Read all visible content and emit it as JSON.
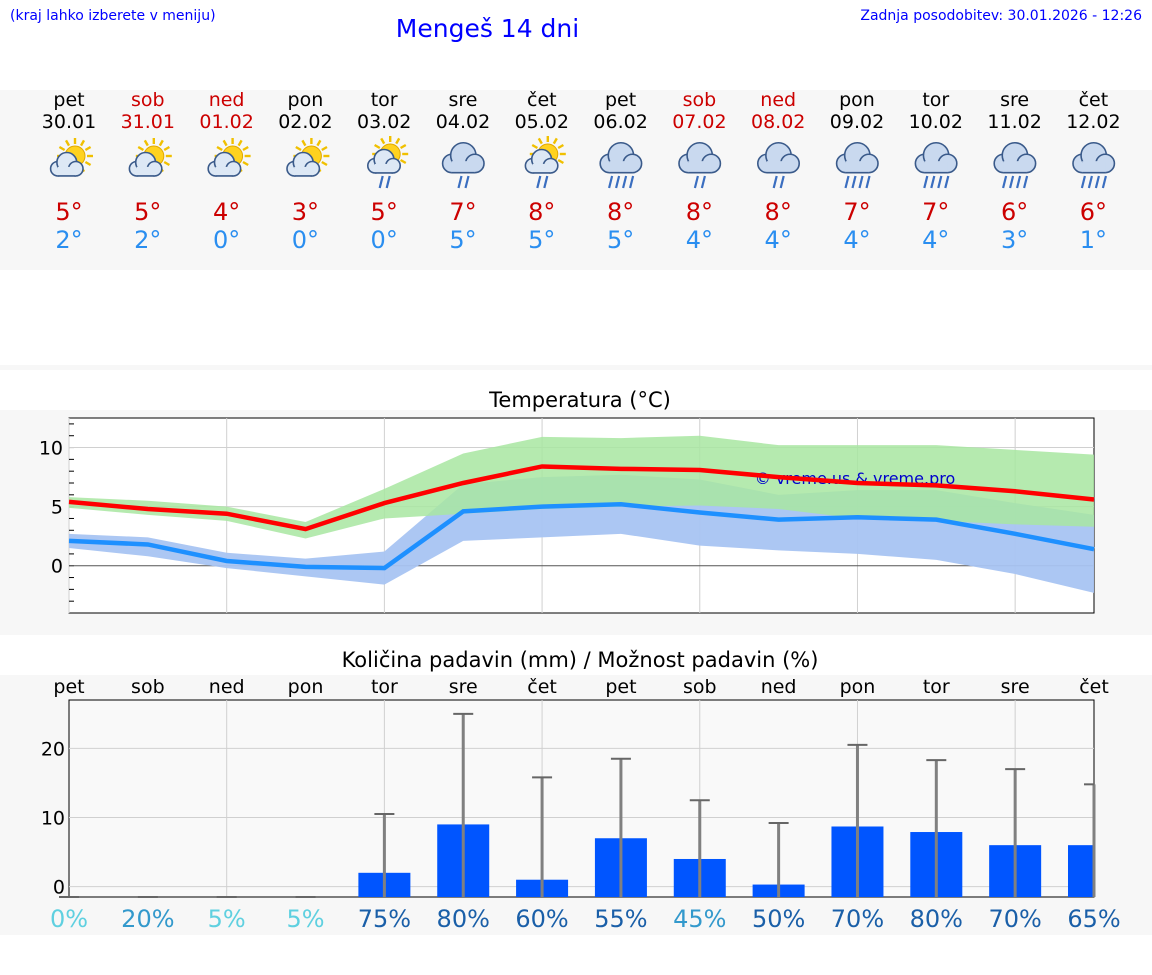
{
  "header": {
    "hint": "(kraj lahko izberete v meniju)",
    "title": "Mengeš 14 dni",
    "updated": "Zadnja posodobitev: 30.01.2026 - 12:26"
  },
  "days": [
    {
      "name": "pet",
      "date": "30.01",
      "weekend": false,
      "icon": "sun-cloud-icon",
      "tmax": "5°",
      "tmin": "2°"
    },
    {
      "name": "sob",
      "date": "31.01",
      "weekend": true,
      "icon": "sun-cloud-icon",
      "tmax": "5°",
      "tmin": "2°"
    },
    {
      "name": "ned",
      "date": "01.02",
      "weekend": true,
      "icon": "sun-cloud-icon",
      "tmax": "4°",
      "tmin": "0°"
    },
    {
      "name": "pon",
      "date": "02.02",
      "weekend": false,
      "icon": "sun-cloud-icon",
      "tmax": "3°",
      "tmin": "0°"
    },
    {
      "name": "tor",
      "date": "03.02",
      "weekend": false,
      "icon": "sun-cloud-rain-icon",
      "tmax": "5°",
      "tmin": "0°"
    },
    {
      "name": "sre",
      "date": "04.02",
      "weekend": false,
      "icon": "cloud-rain-icon",
      "tmax": "7°",
      "tmin": "5°"
    },
    {
      "name": "čet",
      "date": "05.02",
      "weekend": false,
      "icon": "sun-cloud-rain-icon",
      "tmax": "8°",
      "tmin": "5°"
    },
    {
      "name": "pet",
      "date": "06.02",
      "weekend": false,
      "icon": "cloud-heavy-rain-icon",
      "tmax": "8°",
      "tmin": "5°"
    },
    {
      "name": "sob",
      "date": "07.02",
      "weekend": true,
      "icon": "cloud-rain-icon",
      "tmax": "8°",
      "tmin": "4°"
    },
    {
      "name": "ned",
      "date": "08.02",
      "weekend": true,
      "icon": "cloud-rain-icon",
      "tmax": "8°",
      "tmin": "4°"
    },
    {
      "name": "pon",
      "date": "09.02",
      "weekend": false,
      "icon": "cloud-heavy-rain-icon",
      "tmax": "7°",
      "tmin": "4°"
    },
    {
      "name": "tor",
      "date": "10.02",
      "weekend": false,
      "icon": "cloud-heavy-rain-icon",
      "tmax": "7°",
      "tmin": "4°"
    },
    {
      "name": "sre",
      "date": "11.02",
      "weekend": false,
      "icon": "cloud-heavy-rain-icon",
      "tmax": "6°",
      "tmin": "3°"
    },
    {
      "name": "čet",
      "date": "12.02",
      "weekend": false,
      "icon": "cloud-heavy-rain-icon",
      "tmax": "6°",
      "tmin": "1°"
    }
  ],
  "colors": {
    "max_line": "#ff0000",
    "min_line": "#1e90ff",
    "max_band": "#a8e6a1",
    "min_band": "#a8c4f2",
    "overlap_band": "#7cc49f",
    "bar": "#0055ff",
    "whisker": "#808080"
  },
  "chart_data": [
    {
      "type": "line",
      "title": "Temperatura (°C)",
      "watermark": "© vreme.us & vreme.pro",
      "x": [
        0,
        1,
        2,
        3,
        4,
        5,
        6,
        7,
        8,
        9,
        10,
        11,
        12,
        13
      ],
      "ylim": [
        -4,
        12.5
      ],
      "yticks": [
        0,
        5,
        10
      ],
      "series": [
        {
          "name": "max",
          "values": [
            5.4,
            4.8,
            4.4,
            3.1,
            5.3,
            7.0,
            8.4,
            8.2,
            8.1,
            7.5,
            7.0,
            6.8,
            6.3,
            5.6
          ],
          "band_low": [
            4.9,
            4.3,
            3.8,
            2.3,
            4.0,
            4.4,
            4.8,
            5.0,
            5.1,
            4.8,
            4.0,
            3.8,
            3.5,
            3.3
          ],
          "band_high": [
            5.8,
            5.5,
            5.0,
            3.7,
            6.5,
            9.5,
            10.9,
            10.8,
            11.0,
            10.2,
            10.2,
            10.2,
            9.8,
            9.4
          ]
        },
        {
          "name": "min",
          "values": [
            2.1,
            1.8,
            0.4,
            -0.1,
            -0.2,
            4.6,
            5.0,
            5.2,
            4.5,
            3.9,
            4.1,
            3.9,
            2.7,
            1.4
          ],
          "band_low": [
            1.5,
            0.8,
            -0.2,
            -0.9,
            -1.6,
            2.1,
            2.4,
            2.7,
            1.7,
            1.3,
            1.0,
            0.5,
            -0.7,
            -2.3
          ],
          "band_high": [
            2.7,
            2.4,
            1.1,
            0.6,
            1.2,
            6.9,
            7.5,
            7.7,
            7.3,
            6.0,
            6.4,
            6.4,
            5.3,
            4.3
          ]
        }
      ]
    },
    {
      "type": "bar",
      "title": "Količina padavin (mm) / Možnost padavin (%)",
      "categories": [
        "pet",
        "sob",
        "ned",
        "pon",
        "tor",
        "sre",
        "čet",
        "pet",
        "sob",
        "ned",
        "pon",
        "tor",
        "sre",
        "čet"
      ],
      "values": [
        0,
        0,
        0,
        0,
        2,
        9,
        1,
        7,
        4,
        0.3,
        8.7,
        7.9,
        6,
        6
      ],
      "error_high": [
        0,
        0,
        0,
        0,
        10.5,
        25,
        15.8,
        18.5,
        12.5,
        9.2,
        20.5,
        18.3,
        17,
        14.8
      ],
      "probability": [
        "0%",
        "20%",
        "5%",
        "5%",
        "75%",
        "80%",
        "60%",
        "55%",
        "45%",
        "50%",
        "70%",
        "80%",
        "70%",
        "65%"
      ],
      "ylim": [
        -1.5,
        27
      ],
      "yticks": [
        0,
        10,
        20
      ]
    }
  ]
}
